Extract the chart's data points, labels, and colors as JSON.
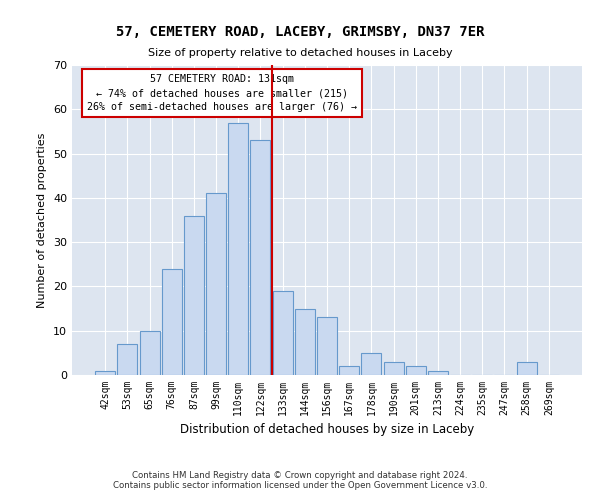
{
  "title": "57, CEMETERY ROAD, LACEBY, GRIMSBY, DN37 7ER",
  "subtitle": "Size of property relative to detached houses in Laceby",
  "xlabel": "Distribution of detached houses by size in Laceby",
  "ylabel": "Number of detached properties",
  "categories": [
    "42sqm",
    "53sqm",
    "65sqm",
    "76sqm",
    "87sqm",
    "99sqm",
    "110sqm",
    "122sqm",
    "133sqm",
    "144sqm",
    "156sqm",
    "167sqm",
    "178sqm",
    "190sqm",
    "201sqm",
    "213sqm",
    "224sqm",
    "235sqm",
    "247sqm",
    "258sqm",
    "269sqm"
  ],
  "values": [
    1,
    7,
    10,
    24,
    36,
    41,
    57,
    53,
    19,
    15,
    13,
    2,
    5,
    3,
    2,
    1,
    0,
    0,
    0,
    3,
    0
  ],
  "bar_color": "#c9d9f0",
  "bar_edge_color": "#6699cc",
  "vline_x": 7.5,
  "marker_label": "57 CEMETERY ROAD: 131sqm",
  "annotation_line1": "← 74% of detached houses are smaller (215)",
  "annotation_line2": "26% of semi-detached houses are larger (76) →",
  "vline_color": "#cc0000",
  "annotation_box_color": "#ffffff",
  "annotation_box_edge_color": "#cc0000",
  "ylim": [
    0,
    70
  ],
  "yticks": [
    0,
    10,
    20,
    30,
    40,
    50,
    60,
    70
  ],
  "background_color": "#dde5f0",
  "footer_line1": "Contains HM Land Registry data © Crown copyright and database right 2024.",
  "footer_line2": "Contains public sector information licensed under the Open Government Licence v3.0."
}
